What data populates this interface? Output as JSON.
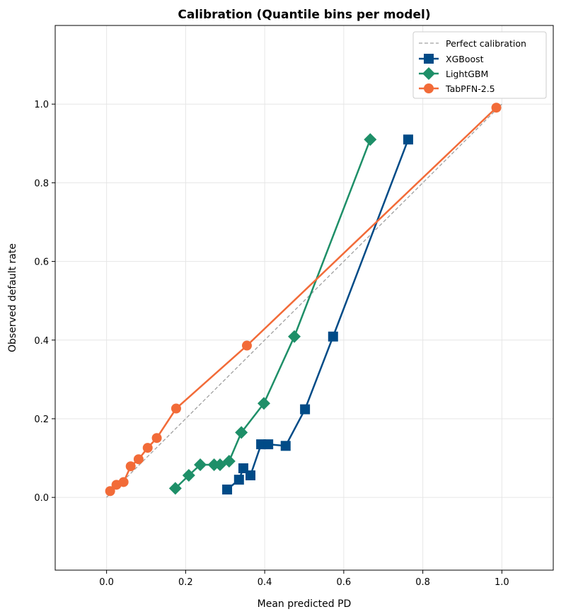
{
  "chart_data": {
    "type": "line",
    "title": "Calibration (Quantile bins per model)",
    "xlabel": "Mean predicted PD",
    "ylabel": "Observed default rate",
    "xlim": [
      -0.13,
      1.13
    ],
    "ylim": [
      -0.185,
      1.2
    ],
    "xticks": [
      0.0,
      0.2,
      0.4,
      0.6,
      0.8,
      1.0
    ],
    "yticks": [
      0.0,
      0.2,
      0.4,
      0.6,
      0.8,
      1.0
    ],
    "xtick_labels": [
      "0.0",
      "0.2",
      "0.4",
      "0.6",
      "0.8",
      "1.0"
    ],
    "ytick_labels": [
      "0.0",
      "0.2",
      "0.4",
      "0.6",
      "0.8",
      "1.0"
    ],
    "grid": true,
    "legend_placement": "top-right",
    "reference": {
      "name": "Perfect calibration",
      "x": [
        0,
        1
      ],
      "y": [
        0,
        1
      ],
      "color": "#a0a0a0",
      "style": "dashed"
    },
    "series": [
      {
        "name": "XGBoost",
        "color": "#004b87",
        "marker": "square",
        "x": [
          0.305,
          0.335,
          0.346,
          0.364,
          0.391,
          0.409,
          0.453,
          0.502,
          0.573,
          0.763
        ],
        "y": [
          0.02,
          0.045,
          0.074,
          0.056,
          0.135,
          0.135,
          0.131,
          0.224,
          0.409,
          0.91
        ]
      },
      {
        "name": "LightGBM",
        "color": "#1e8f68",
        "marker": "diamond",
        "x": [
          0.174,
          0.208,
          0.237,
          0.272,
          0.287,
          0.31,
          0.341,
          0.398,
          0.475,
          0.667
        ],
        "y": [
          0.023,
          0.056,
          0.083,
          0.083,
          0.083,
          0.092,
          0.165,
          0.239,
          0.409,
          0.91
        ]
      },
      {
        "name": "TabPFN-2.5",
        "color": "#f26b38",
        "marker": "circle",
        "x": [
          0.009,
          0.025,
          0.043,
          0.061,
          0.081,
          0.104,
          0.127,
          0.176,
          0.355,
          0.986
        ],
        "y": [
          0.016,
          0.032,
          0.039,
          0.079,
          0.097,
          0.126,
          0.151,
          0.226,
          0.386,
          0.991
        ]
      }
    ]
  }
}
